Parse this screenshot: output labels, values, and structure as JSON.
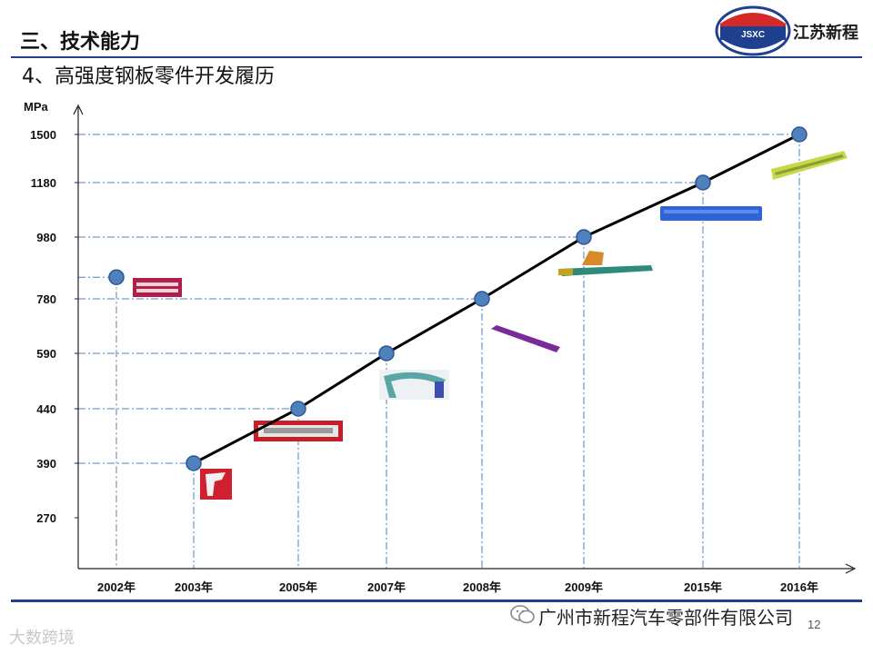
{
  "header": {
    "section_title": "三、技术能力",
    "subtitle": "4、高强度钢板零件开发履历",
    "company_name": "江苏新程",
    "logo_text": "JSXC"
  },
  "footer": {
    "text": "广州市新程汽车零部件有限公司",
    "page_number": "12",
    "watermark": "大数跨境"
  },
  "colors": {
    "line": "#000000",
    "marker": "#4f81bd",
    "marker_edge": "#2f5597",
    "guide": "#4f81bd",
    "rule": "#1f3f8f"
  },
  "chart_data": {
    "type": "line",
    "ylabel": "MPa",
    "yticks": [
      "1500",
      "1180",
      "980",
      "780",
      "590",
      "440",
      "390",
      "270"
    ],
    "xticks": [
      "2002年",
      "2003年",
      "2005年",
      "2007年",
      "2008年",
      "2009年",
      "2015年",
      "2016年"
    ],
    "standalone_point": {
      "x": "2002年",
      "y": 850
    },
    "series": [
      {
        "points": [
          {
            "x": "2003年",
            "y": 390
          },
          {
            "x": "2005年",
            "y": 440
          },
          {
            "x": "2007年",
            "y": 590
          },
          {
            "x": "2008年",
            "y": 780
          },
          {
            "x": "2009年",
            "y": 980
          },
          {
            "x": "2015年",
            "y": 1180
          },
          {
            "x": "2016年",
            "y": 1500
          }
        ]
      }
    ],
    "grid": "dash-dot guide lines to both axes",
    "legend": "none"
  }
}
